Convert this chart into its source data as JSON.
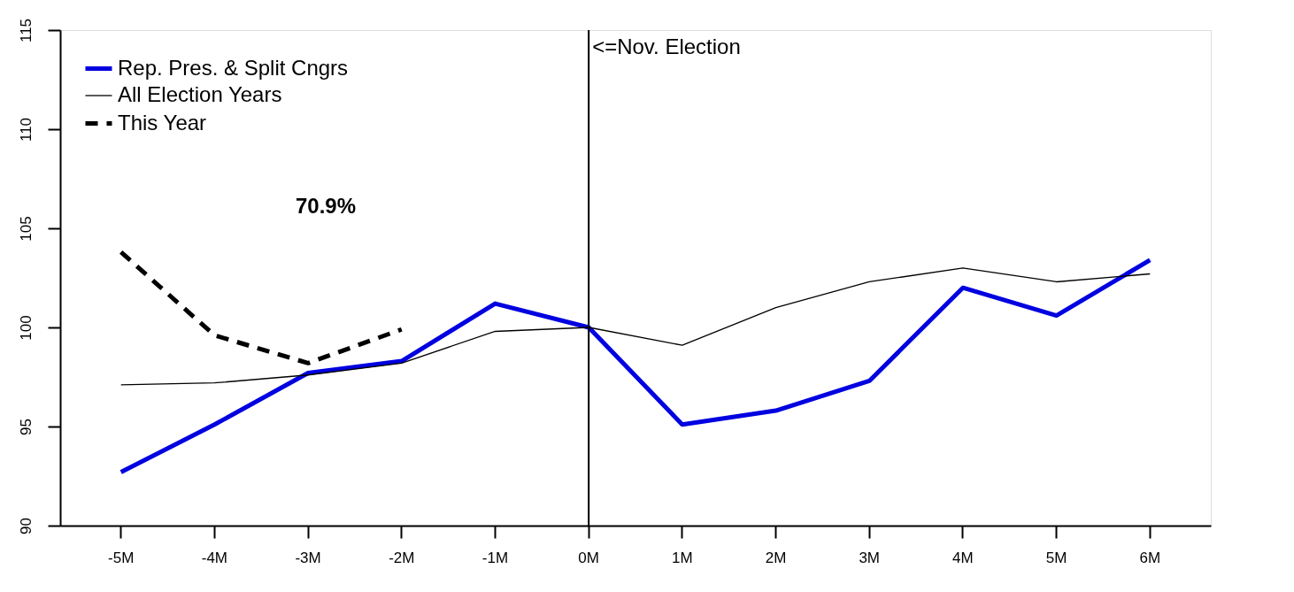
{
  "chart_data": {
    "type": "line",
    "categories": [
      "-5M",
      "-4M",
      "-3M",
      "-2M",
      "-1M",
      "0M",
      "1M",
      "2M",
      "3M",
      "4M",
      "5M",
      "6M"
    ],
    "series": [
      {
        "name": "Rep. Pres. & Split Cngrs",
        "color": "#0000e0",
        "line_style": "solid",
        "values": [
          92.7,
          95.1,
          97.7,
          98.3,
          101.2,
          100.0,
          95.1,
          95.8,
          97.3,
          102.0,
          100.6,
          103.4
        ]
      },
      {
        "name": "All Election Years",
        "color": "#000000",
        "line_style": "solid",
        "values": [
          97.1,
          97.2,
          97.6,
          98.2,
          99.8,
          100.0,
          99.1,
          101.0,
          102.3,
          103.0,
          102.3,
          102.7
        ]
      },
      {
        "name": "This Year",
        "color": "#000000",
        "line_style": "dashed",
        "values": [
          103.8,
          99.6,
          98.2,
          99.9,
          null,
          null,
          null,
          null,
          null,
          null,
          null,
          null
        ]
      }
    ],
    "ylim": [
      90,
      115
    ],
    "yticks": [
      90,
      95,
      100,
      105,
      110,
      115
    ],
    "ref_lines": [
      {
        "axis": "x",
        "value": "0M",
        "label": "<=Nov. Election",
        "color": "#000000"
      }
    ],
    "annotations": [
      "70.9%"
    ],
    "grid": false,
    "legend": "top left"
  }
}
